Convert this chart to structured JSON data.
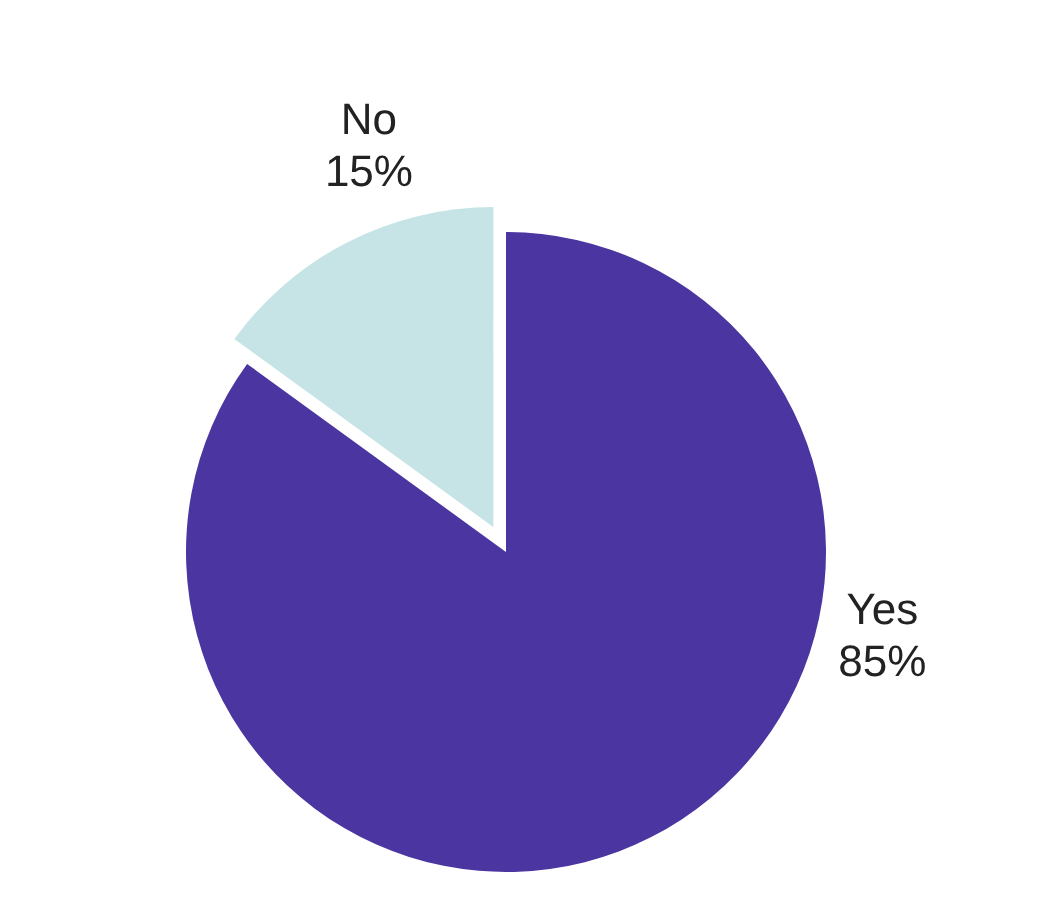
{
  "chart_data": {
    "type": "pie",
    "categories": [
      "Yes",
      "No"
    ],
    "values": [
      85,
      15
    ],
    "value_labels": [
      "85%",
      "15%"
    ],
    "colors": [
      "#4b35a0",
      "#c6e4e6"
    ]
  }
}
